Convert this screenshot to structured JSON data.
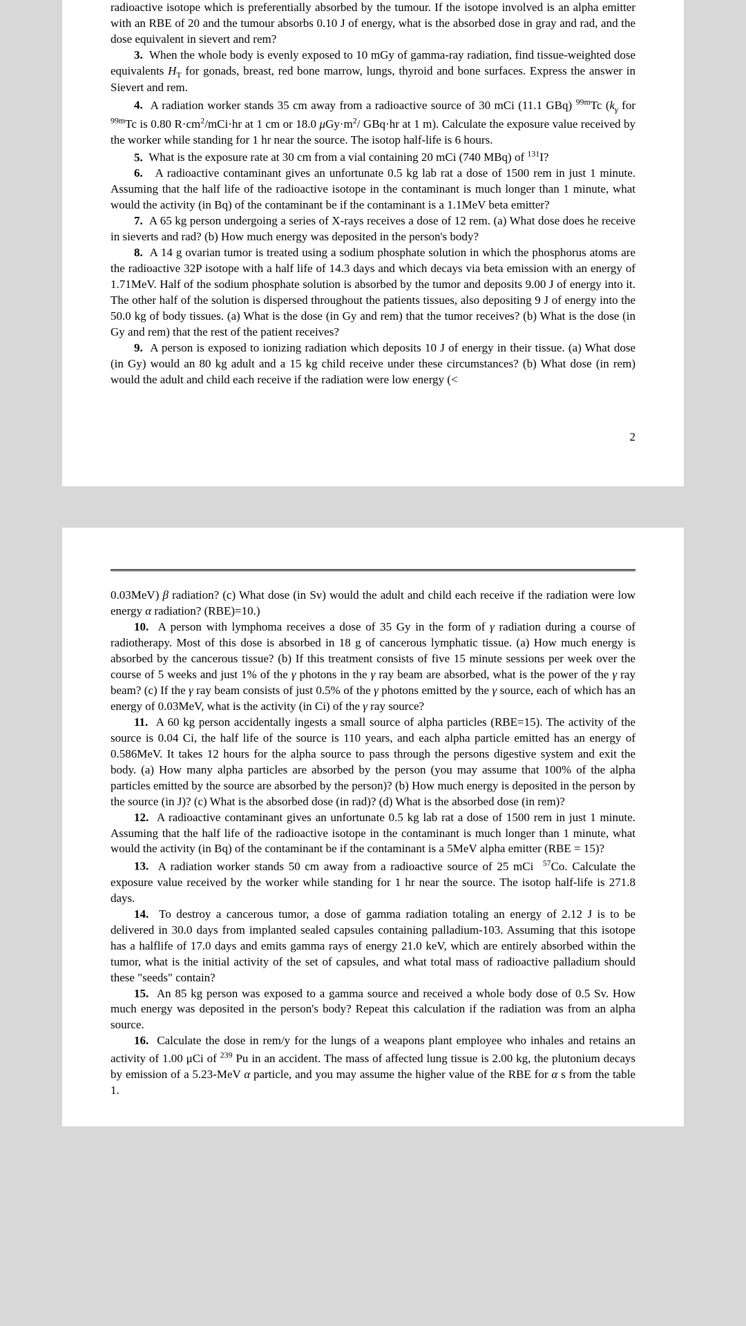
{
  "page1": {
    "intro": "radioactive isotope which is preferentially absorbed by the tumour. If the isotope involved is an alpha emitter with an RBE of 20 and the tumour absorbs 0.10 J of energy, what is the absorbed dose in gray and rad, and the dose equivalent in sievert and rem?",
    "q3": "When the whole body is evenly exposed to 10 mGy of gamma-ray radiation, find tissue-weighted dose equivalents Hᴛ for gonads, breast, red bone marrow, lungs, thyroid and bone surfaces. Express the answer in Sievert and rem.",
    "q4": "A radiation worker stands 35 cm away from a radioactive source of 30 mCi (11.1 GBq) ⁹⁹ᵐTc (kᵧ for ⁹⁹ᵐTc is 0.80 R·cm²/mCi·hr at 1 cm or 18.0 μGy·m²/ GBq·hr at 1 m). Calculate the exposure value received by the worker while standing for 1 hr near the source. The isotop half-life is 6 hours.",
    "q5": "What is the exposure rate at 30 cm from a vial containing 20 mCi (740 MBq) of ¹³¹I?",
    "q6": "A radioactive contaminant gives an unfortunate 0.5 kg lab rat a dose of 1500 rem in just 1 minute. Assuming that the half life of the radioactive isotope in the contaminant is much longer than 1 minute, what would the activity (in Bq) of the contaminant be if the contaminant is a 1.1MeV beta emitter?",
    "q7": "A 65 kg person undergoing a series of X-rays receives a dose of 12 rem. (a) What dose does he receive in sieverts and rad? (b) How much energy was deposited in the person's body?",
    "q8": "A 14 g ovarian tumor is treated using a sodium phosphate solution in which the phosphorus atoms are the radioactive 32P isotope with a half life of 14.3 days and which decays via beta emission with an energy of 1.71MeV. Half of the sodium phosphate solution is absorbed by the tumor and deposits 9.00 J of energy into it. The other half of the solution is dispersed throughout the patients tissues, also depositing 9 J of energy into the 50.0 kg of body tissues. (a) What is the dose (in Gy and rem) that the tumor receives? (b) What is the dose (in Gy and rem) that the rest of the patient receives?",
    "q9": "A person is exposed to ionizing radiation which deposits 10 J of energy in their tissue. (a) What dose (in Gy) would an 80 kg adult and a 15 kg child receive under these circumstances? (b) What dose (in rem) would the adult and child each receive if the radiation were low energy (<",
    "pagenum": "2"
  },
  "page2": {
    "cont": "0.03MeV) β radiation? (c) What dose (in Sv) would the adult and child each receive if the radiation were low energy α radiation? (RBE)=10.)",
    "q10": "A person with lymphoma receives a dose of 35 Gy in the form of γ radiation during a course of radiotherapy. Most of this dose is absorbed in 18 g of cancerous lymphatic tissue. (a) How much energy is absorbed by the cancerous tissue? (b) If this treatment consists of five 15 minute sessions per week over the course of 5 weeks and just 1% of the γ photons in the γ ray beam are absorbed, what is the power of the γ ray beam? (c) If the γ ray beam consists of just 0.5% of the γ photons emitted by the γ source, each of which has an energy of 0.03MeV, what is the activity (in Ci) of the γ ray source?",
    "q11": "A 60 kg person accidentally ingests a small source of alpha particles (RBE=15). The activity of the source is 0.04 Ci, the half life of the source is 110 years, and each alpha particle emitted has an energy of 0.586MeV. It takes 12 hours for the alpha source to pass through the persons digestive system and exit the body. (a) How many alpha particles are absorbed by the person (you may assume that 100% of the alpha particles emitted by the source are absorbed by the person)? (b) How much energy is deposited in the person by the source (in J)? (c) What is the absorbed dose (in rad)? (d) What is the absorbed dose (in rem)?",
    "q12": "A radioactive contaminant gives an unfortunate 0.5 kg lab rat a dose of 1500 rem in just 1 minute. Assuming that the half life of the radioactive isotope in the contaminant is much longer than 1 minute, what would the activity (in Bq) of the contaminant be if  the contaminant is a 5MeV alpha emitter (RBE = 15)?",
    "q13": "A radiation worker stands 50 cm away from a radioactive source of 25 mCi  ⁵⁷Co. Calculate the exposure value received by the worker while standing for 1 hr near the source. The isotop half-life is 271.8 days.",
    "q14": "To destroy a cancerous tumor, a dose of gamma radiation totaling an energy of 2.12 J is to be delivered in 30.0 days from implanted sealed capsules containing palladium-103. Assuming that this isotope has a halflife of 17.0 days and emits gamma rays of energy 21.0 keV, which are entirely absorbed within the tumor, what is the initial activity of the set of capsules, and what total mass of radioactive palladium should these \"seeds\" contain?",
    "q15": "An 85 kg person was exposed to a gamma source and received a whole body dose of 0.5 Sv. How much energy was deposited in the person's body? Repeat this calculation if the radiation was from an alpha source.",
    "q16": "Calculate the dose in rem/y for the lungs of a weapons plant employee who inhales and retains an activity of 1.00 μCi of ²³⁹ Pu in an accident. The mass of affected lung tissue is 2.00 kg, the plutonium decays by emission of a 5.23-MeV α particle, and you may assume the higher value of the RBE for α s from the table 1."
  }
}
